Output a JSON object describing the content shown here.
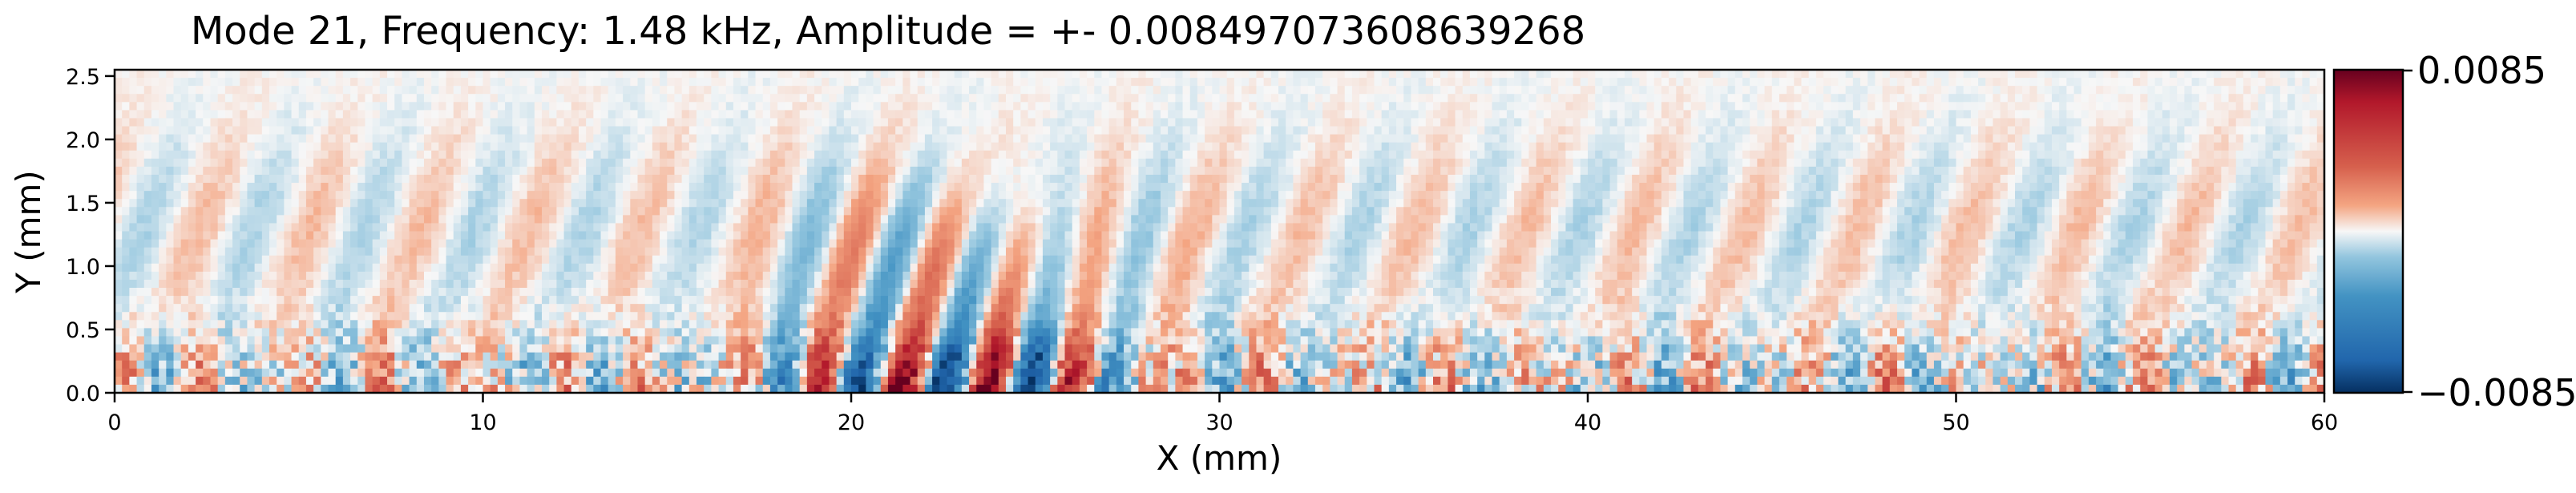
{
  "chart_data": {
    "type": "heatmap",
    "title": "Mode 21, Frequency: 1.48 kHz, Amplitude = +- 0.008497073608639268",
    "xlabel": "X (mm)",
    "ylabel": "Y (mm)",
    "xlim": [
      0,
      60
    ],
    "ylim": [
      0,
      2.55
    ],
    "xticks": [
      0,
      10,
      20,
      30,
      40,
      50,
      60
    ],
    "xtick_labels": [
      "0",
      "10",
      "20",
      "30",
      "40",
      "50",
      "60"
    ],
    "yticks": [
      0.0,
      0.5,
      1.0,
      1.5,
      2.0,
      2.5
    ],
    "ytick_labels": [
      "0.0",
      "0.5",
      "1.0",
      "1.5",
      "2.0",
      "2.5"
    ],
    "colormap": "RdBu_r",
    "colorbar": {
      "vmin": -0.0085,
      "vmax": 0.0085,
      "tick_labels": [
        "0.0085",
        "−0.0085"
      ]
    },
    "field_description_values": {
      "structure_bands_y_mm": [
        0.0,
        0.7
      ],
      "wave_packet_center_x_mm": 23,
      "wave_packet_wavelength_mm": 2.3,
      "peak_positive_x_mm": [
        19.6,
        21.9,
        24.3,
        26.7
      ],
      "peak_negative_x_mm": [
        18.4,
        20.8,
        23.1,
        25.4
      ]
    }
  },
  "colors": {
    "dark_red": "#67001f",
    "red": "#b2182b",
    "light_red": "#f4a582",
    "white": "#f7f7f7",
    "light_blue": "#92c5de",
    "blue": "#2166ac",
    "dark_blue": "#053061"
  }
}
